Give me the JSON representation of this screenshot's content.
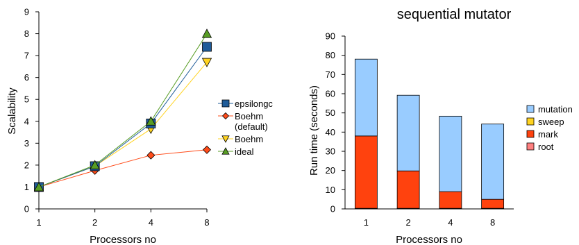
{
  "chart_data": [
    {
      "type": "line",
      "title": "",
      "xlabel": "Processors no",
      "ylabel": "Scalability",
      "categories": [
        "1",
        "2",
        "4",
        "8"
      ],
      "ylim": [
        0,
        9
      ],
      "yticks": [
        "0",
        "1",
        "2",
        "3",
        "4",
        "5",
        "6",
        "7",
        "8",
        "9"
      ],
      "grid": false,
      "legend_position": "right",
      "series": [
        {
          "name": "epsilongc",
          "values": [
            1,
            1.95,
            3.9,
            7.4
          ],
          "color": "#1f5c99",
          "marker": "square"
        },
        {
          "name": "Boehm (default)",
          "legend_lines": [
            "Boehm",
            "(default)"
          ],
          "values": [
            1,
            1.75,
            2.45,
            2.7
          ],
          "color": "#ff4c1a",
          "marker": "diamond"
        },
        {
          "name": "Boehm",
          "values": [
            1,
            1.95,
            3.65,
            6.7
          ],
          "color": "#ffd320",
          "marker": "triangle-down"
        },
        {
          "name": "ideal",
          "values": [
            1,
            2,
            4,
            8
          ],
          "color": "#589d24",
          "marker": "triangle-up"
        }
      ]
    },
    {
      "type": "bar",
      "stacked": true,
      "title": "sequential mutator",
      "xlabel": "Processors no",
      "ylabel": "Run time (seconds)",
      "categories": [
        "1",
        "2",
        "4",
        "8"
      ],
      "ylim": [
        0,
        90
      ],
      "yticks": [
        "0",
        "10",
        "20",
        "30",
        "40",
        "50",
        "60",
        "70",
        "80",
        "90"
      ],
      "grid": false,
      "legend_position": "right",
      "series": [
        {
          "name": "root",
          "values": [
            0.3,
            0.3,
            0.3,
            0.3
          ],
          "color": "#ff8080"
        },
        {
          "name": "mark",
          "values": [
            37.7,
            19.5,
            8.7,
            4.7
          ],
          "color": "#ff420e"
        },
        {
          "name": "sweep",
          "values": [
            0,
            0,
            0,
            0
          ],
          "color": "#ffd320"
        },
        {
          "name": "mutation",
          "values": [
            40,
            39.4,
            39.3,
            39.2
          ],
          "color": "#99ccff"
        }
      ],
      "legend_order": [
        "mutation",
        "sweep",
        "mark",
        "root"
      ]
    }
  ]
}
